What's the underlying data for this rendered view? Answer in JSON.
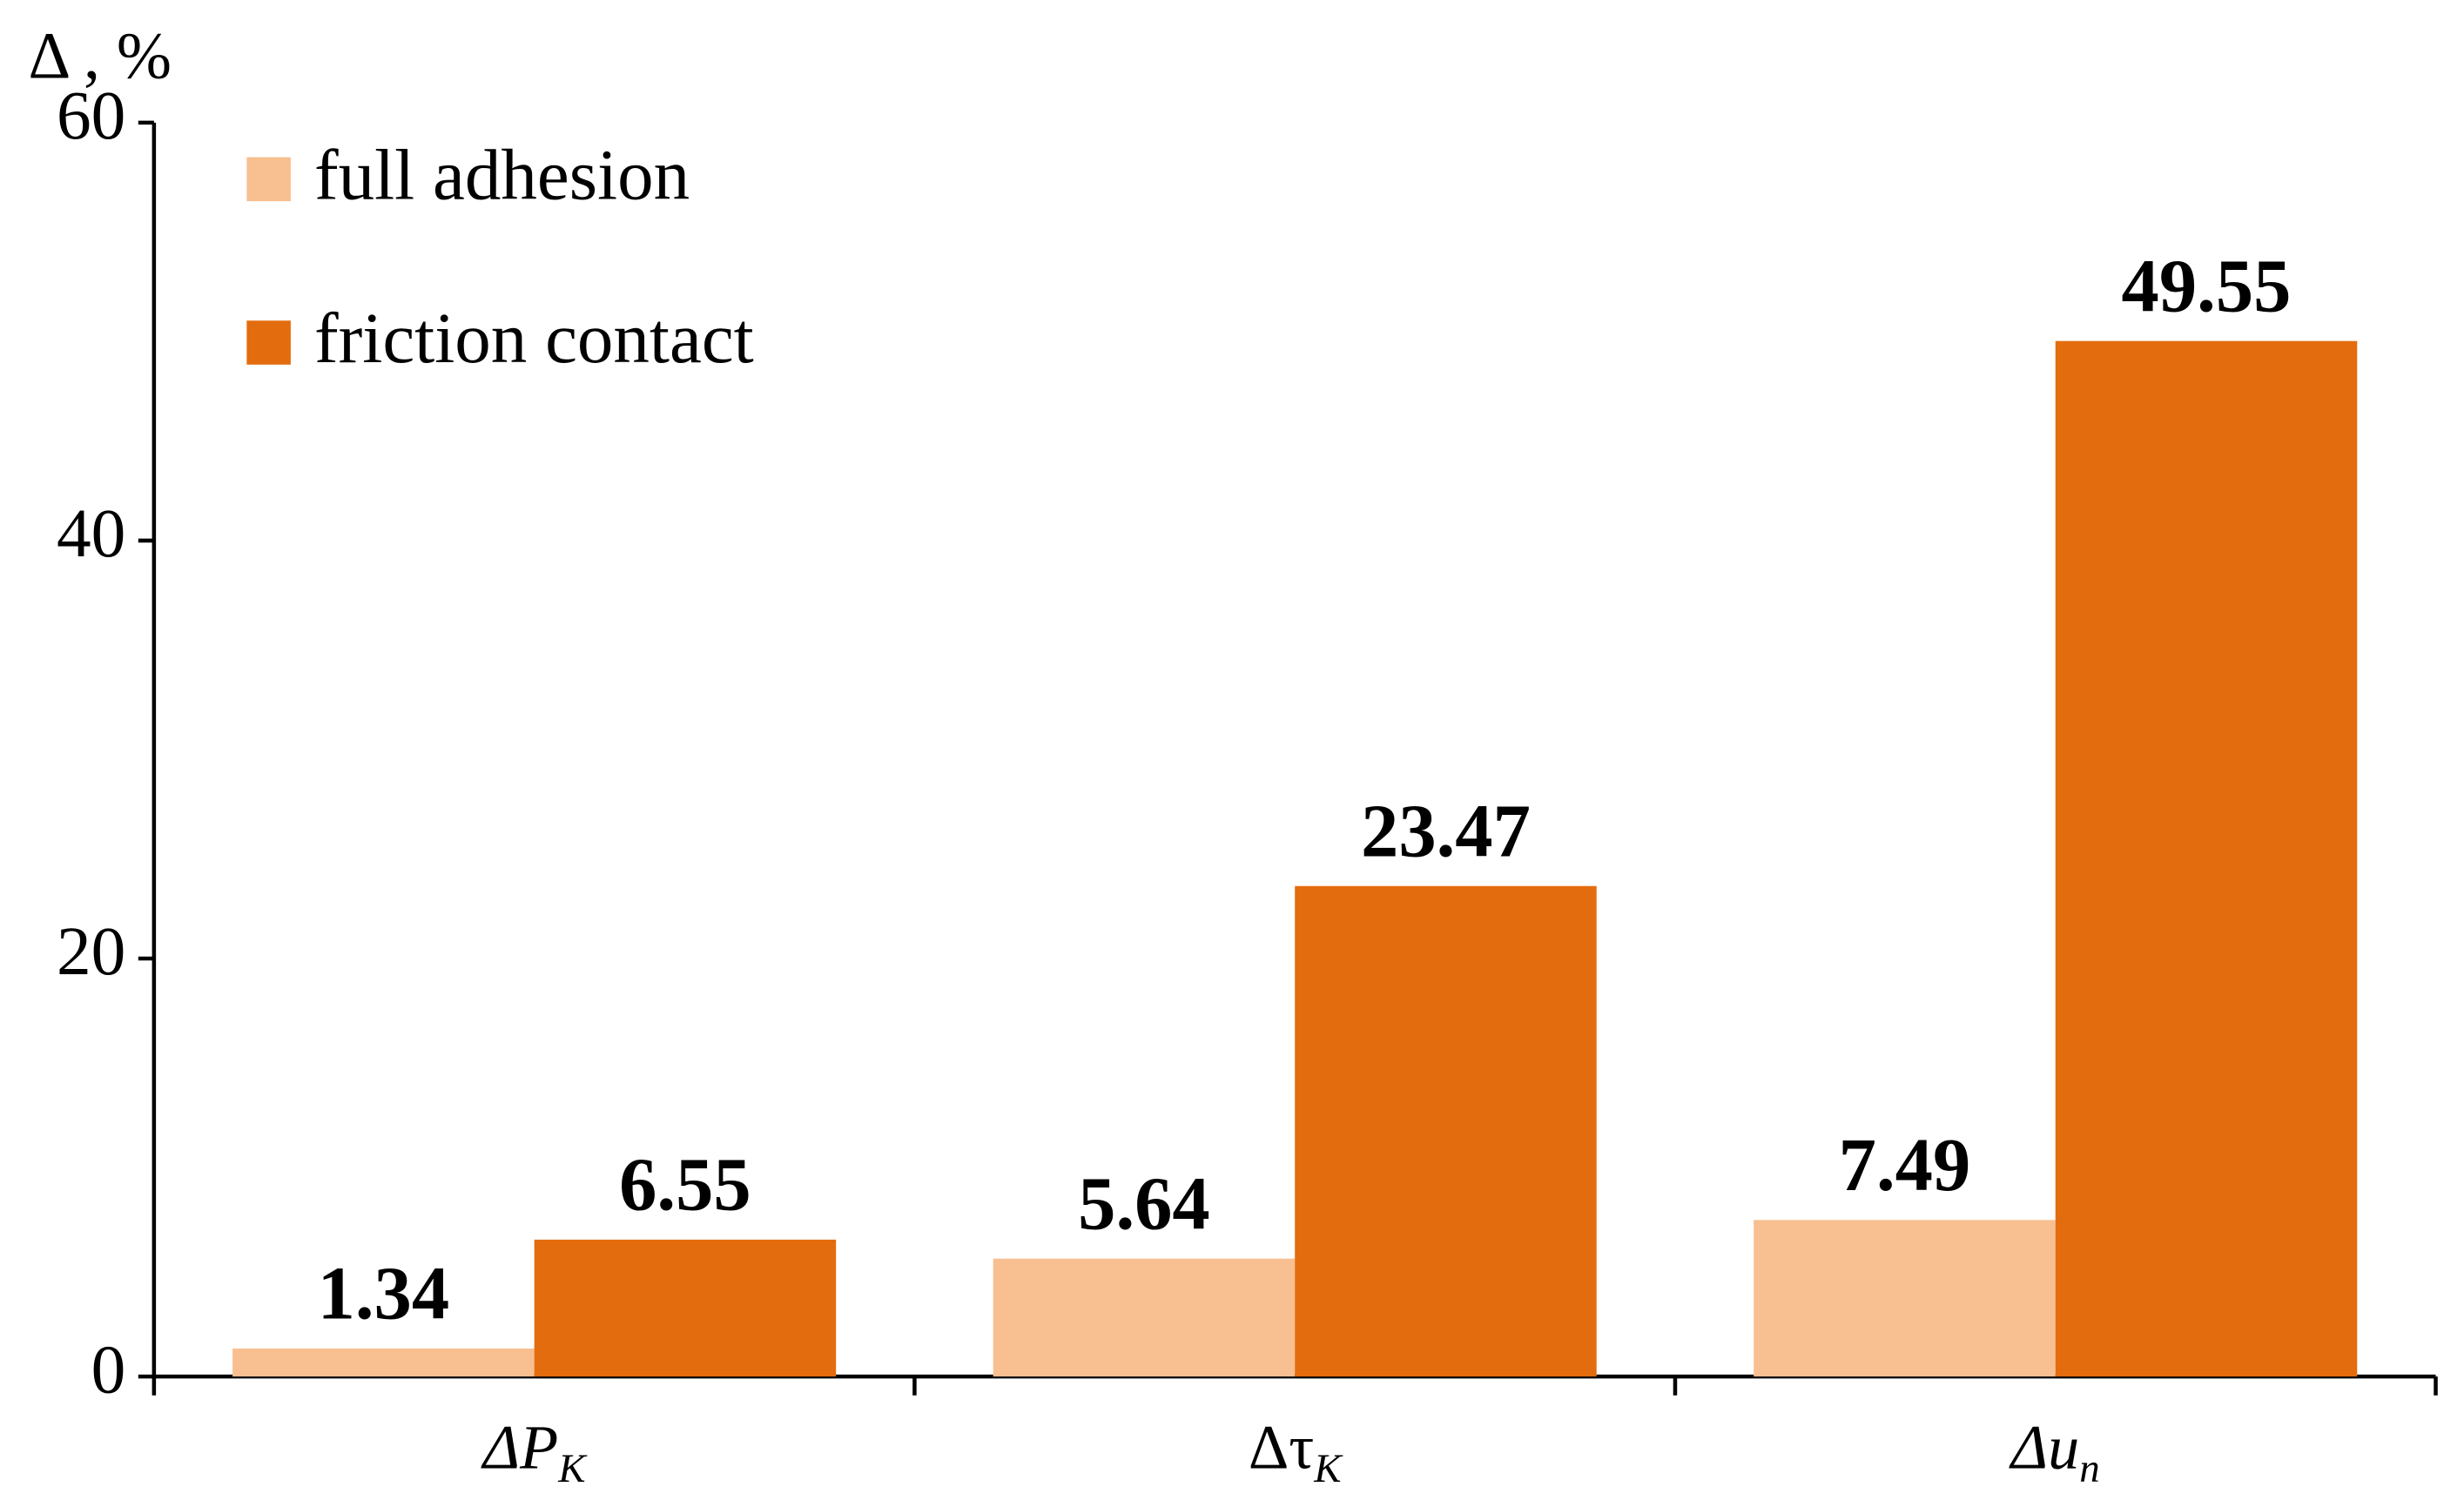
{
  "chart_data": {
    "type": "bar",
    "y_label": "Δ , %",
    "categories": [
      "ΔPK",
      "ΔτK",
      "Δun"
    ],
    "series": [
      {
        "name": "full adhesion",
        "color": "#f8bf91",
        "values": [
          1.34,
          5.64,
          7.49
        ]
      },
      {
        "name": "friction contact",
        "color": "#e36c0e",
        "values": [
          6.55,
          23.47,
          49.55
        ]
      }
    ],
    "ylim": [
      0,
      60
    ],
    "yticks": [
      0,
      20,
      40,
      60
    ],
    "grid": false,
    "legend": "top-left"
  }
}
